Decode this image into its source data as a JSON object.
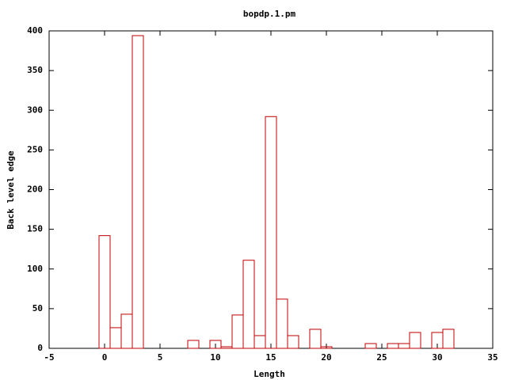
{
  "chart_data": {
    "type": "bar",
    "title": "bopdp.1.pm",
    "x_label": "Length",
    "y_label": "Back level edge",
    "x": [
      0,
      1,
      2,
      3,
      8,
      10,
      11,
      12,
      13,
      14,
      15,
      16,
      17,
      19,
      20,
      24,
      26,
      27,
      28,
      30,
      31
    ],
    "values": [
      142,
      26,
      43,
      394,
      10,
      10,
      2,
      42,
      111,
      16,
      292,
      62,
      16,
      24,
      2,
      6,
      6,
      6,
      20,
      20,
      24
    ],
    "color": "#c00000",
    "xlim": [
      -5,
      35
    ],
    "xticks": [
      -5,
      0,
      5,
      10,
      15,
      20,
      25,
      30,
      35
    ],
    "ylim": [
      0,
      400
    ],
    "yticks": [
      0,
      50,
      100,
      150,
      200,
      250,
      300,
      350,
      400
    ],
    "grid": false
  }
}
